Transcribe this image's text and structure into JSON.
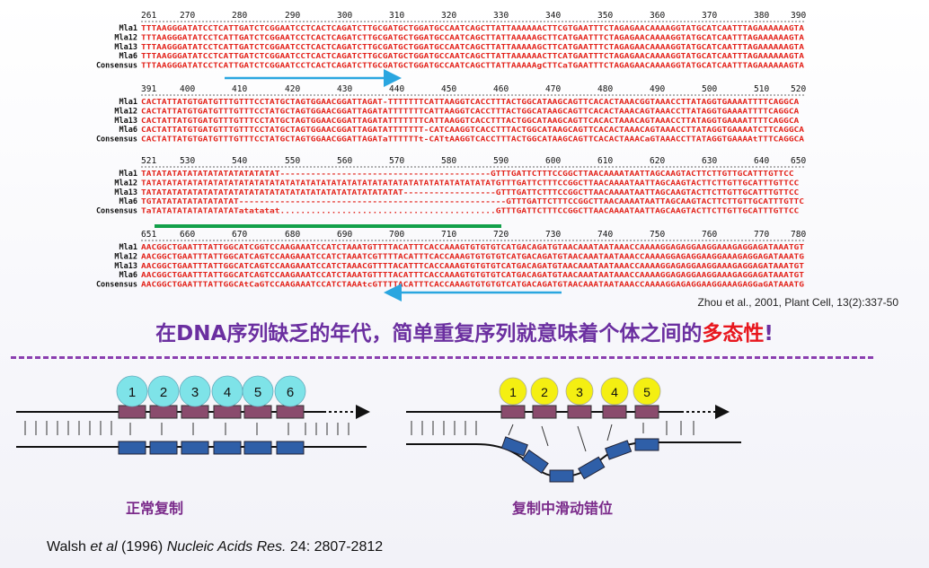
{
  "alignment": {
    "blocks": [
      {
        "ticks": [
          "261",
          "270",
          "280",
          "290",
          "300",
          "310",
          "320",
          "330",
          "340",
          "350",
          "360",
          "370",
          "380",
          "390"
        ],
        "rows": [
          {
            "name": "Mla1",
            "seq": "TTTAAGGGATATCCTCATTGATCTCGGAATCCTCACTCAGATCTTGCGATGCTGGATGCCAATCAGCTTATTAAAAAACTTCGTGAATTTCTAGAGAACAAAAGGTATGCATCAATTTAGAAAAAAGTA"
          },
          {
            "name": "Mla12",
            "seq": "TTTAAGGGATATCCTCATTGATCTCGGAATCCTCACTCAGATCTTGCGATGCTGGATGCCAATCAGCTTATTAAAAAGCTTCATGAATTTCTAGAGAACAAAAGGTATGCATCAATTTAGAAAAAAGTA"
          },
          {
            "name": "Mla13",
            "seq": "TTTAAGGGATATCCTCATTGATCTCGGAATCCTCACTCAGATCTTGCGATGCTGGATGCCAATCAGCTTATTAAAAAGCTTCATGAATTTCTAGAGAACAAAAGGTATGCATCAATTTAGAAAAAAGTA"
          },
          {
            "name": "Mla6",
            "seq": "TTTAAGGGATATCCTCATTGATCTCGGAATCCTCACTCAGATCTTGCGATGCTGGATGCCAATCAGCTTATTAAAAAACTTCATGAATTTCTAGAGAACAAAAGGTATGCATCAATTTAGAAAAAAGTA"
          },
          {
            "name": "Consensus",
            "seq": "TTTAAGGGATATCCTCATTGATCTCGGAATCCTCACTCAGATCTTGCGATGCTGGATGCCAATCAGCTTATTAAAAAgCTTCaTGAATTTCTAGAGAACAAAAGGTATGCATCAATTTAGAAAAAAGTA"
          }
        ]
      },
      {
        "ticks": [
          "391",
          "400",
          "410",
          "420",
          "430",
          "440",
          "450",
          "460",
          "470",
          "480",
          "490",
          "500",
          "510",
          "520"
        ],
        "rows": [
          {
            "name": "Mla1",
            "seq": "CACTATTATGTGATGTTTGTTTCCTATGCTAGTGGAACGGATTAGAT-TTTTTTTCATTAAGGTCACCTTTACTGGCATAAGCAGTTCACACTAAACGGTAAACCTTATAGGTGAAAATTTTCAGGCA"
          },
          {
            "name": "Mla12",
            "seq": "CACTATTATGTGATGTTTGTTTCCTATGCTAGTGGAACGGATTAGATATTTTTTTCATTAAGGTCACCTTTACTGGCATAAGCAGTTCACACTAAACAGTAAACCTTATAGGTGAAAATTTTCAGGCA"
          },
          {
            "name": "Mla13",
            "seq": "CACTATTATGTGATGTTTGTTTCCTATGCTAGTGGAACGGATTAGATATTTTTTTCATTAAGGTCACCTTTACTGGCATAAGCAGTTCACACTAAACAGTAAACCTTATAGGTGAAAATTTTCAGGCA"
          },
          {
            "name": "Mla6",
            "seq": "CACTATTATGTGATGTTTGTTTCCTATGCTAGTGGAACGGATTAGATATTTTTTT-CATCAAGGTCACCTTTACTGGCATAAGCAGTTCACACTAAACAGTAAACCTTATAGGTGAAAATCTTCAGGCA"
          },
          {
            "name": "Consensus",
            "seq": "CACTATTATGTGATGTTTGTTTCCTATGCTAGTGGAACGGATTAGATaTTTTTTt-CATtAAGGTCACCTTTACTGGCATAAGCAGTTCACACTAAACaGTAAACCTTATAGGTGAAAAtTTTCAGGCA"
          }
        ]
      },
      {
        "ticks": [
          "521",
          "530",
          "540",
          "550",
          "560",
          "570",
          "580",
          "590",
          "600",
          "610",
          "620",
          "630",
          "640",
          "650"
        ],
        "rows": [
          {
            "name": "Mla1",
            "seq": "TATATATATATATATATATATATATAT-----------------------------------------GTTTGATTCTTTCCGGCTTAACAAAATAATTAGCAAGTACTTCTTGTTGCATTTGTTCC"
          },
          {
            "name": "Mla12",
            "seq": "TATATATATATATATATATATATATATATATATATATATATATATATATATATATATATATATATATATGTTTGATTCTTTCCGGCTTAACAAAATAATTAGCAAGTACTTCTTGTTGCATTTGTTCC"
          },
          {
            "name": "Mla13",
            "seq": "TATATATATATATATATATATATATATATATATATATATATATATATATAT------------------GTTTGATTCTTTCCGGCTTAACAAAATAATTAGCAAGTACTTCTTGTTGCATTTGTTCC"
          },
          {
            "name": "Mla6",
            "seq": "TGTATATATATATATATAT----------------------------------------------------GTTTGATTCTTTCCGGCTTAACAAAATAATTAGCAAGTACTTCTTGTTGCATTTGTTCC"
          },
          {
            "name": "Consensus",
            "seq": "TaTATATATATATATATATatatatat..........................................GTTTGATTCTTTCCGGCTTAACAAAATAATTAGCAAGTACTTCTTGTTGCATTTGTTCC"
          }
        ]
      },
      {
        "ticks": [
          "651",
          "660",
          "670",
          "680",
          "690",
          "700",
          "710",
          "720",
          "730",
          "740",
          "750",
          "760",
          "770",
          "780"
        ],
        "rows": [
          {
            "name": "Mla1",
            "seq": "AACGGCTGAATTTATTGGCATCGGTCCAAGAAATCCATCTAAATGTTTTACATTTCACCAAAGTGTGTGTCATGACAGATGTAACAAATAATAAACCAAAAGGAGAGGAAGGAAAGAGGAGATAAATGT"
          },
          {
            "name": "Mla12",
            "seq": "AACGGCTGAATTTATTGGCATCAGTCCAAGAAATCCATCTAAATCGTTTTACATTTCACCAAAGTGTGTGTCATGACAGATGTAACAAATAATAAACCAAAAGGAGAGGAAGGAAAGAGGAGATAAATGT"
          },
          {
            "name": "Mla13",
            "seq": "AACGGCTGAATTTATTGGCATCAGTCCAAGAAATCCATCTAAACGTTTTACATTTCACCAAAGTGTGTGTCATGACAGATGTAACAAATAATAAACCAAAAGGAGAGGAAGGAAAGAGGAGATAAATGT"
          },
          {
            "name": "Mla6",
            "seq": "AACGGCTGAATTTATTGGCATCAGTCCAAGAAATCCATCTAAATGTTTTACATTTCACCAAAGTGTGTGTCATGACAGATGTAACAAATAATAAACCAAAAGGAGAGGAAGGAAAGAGGAGATAAATGT"
          },
          {
            "name": "Consensus",
            "seq": "AACGGCTGAATTTATTGGCAtCaGTCCAAGAAATCCATCTAAAtcGTTTTACATTTCACCAAAGTGTGTGTCATGACAGATGTAACAAATAATAAACCAAAAGGAGAGGAAGGAAAGAGGaGATAAATGT"
          }
        ]
      }
    ],
    "colors": {
      "sequence": "#e3231b",
      "variant": "#1f35c9",
      "name": "#111111",
      "arrow": "#2aa6e0",
      "bar": "#12a04a"
    }
  },
  "citation": "Zhou et al., 2001, Plant Cell, 13(2):337-50",
  "headline": {
    "part1": "在DNA序列缺乏的年代，简单重复序列就意味着个体之间的",
    "highlight": "多态性",
    "part2": "!"
  },
  "normal_replication": {
    "caption": "正常复制",
    "units": [
      "1",
      "2",
      "3",
      "4",
      "5",
      "6"
    ],
    "circle_color": "#7ee3e8"
  },
  "slippage": {
    "caption": "复制中滑动错位",
    "units": [
      "1",
      "2",
      "3",
      "4",
      "5"
    ],
    "circle_color": "#f4ef12"
  },
  "reference": {
    "authors": "Walsh ",
    "etal": "et al",
    "year": " (1996) ",
    "journal": "Nucleic Acids Res.",
    "volume": " 24: 2807-2812"
  }
}
